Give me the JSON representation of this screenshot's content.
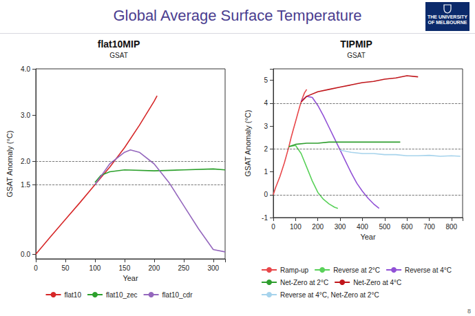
{
  "slide": {
    "title": "Global Average Surface Temperature",
    "logo": "THE UNIVERSITY OF MELBOURNE",
    "page": "8"
  },
  "chart_data": [
    {
      "type": "line",
      "title": "flat10MIP",
      "subtitle": "GSAT",
      "x_label": "Year",
      "y_label": "GSAT Anomaly (°C)",
      "xlim": [
        0,
        320
      ],
      "xticks": [
        0,
        50,
        100,
        150,
        200,
        250,
        300
      ],
      "ylim": [
        -0.1,
        4.0
      ],
      "yticks": [
        {
          "value": 0,
          "label": "0.0"
        },
        1.5,
        {
          "value": 2,
          "label": "2.0"
        },
        {
          "value": 3,
          "label": "3.0"
        },
        {
          "value": 4,
          "label": "4.0"
        }
      ],
      "hlines": [
        1.5,
        2.0
      ],
      "grid": false,
      "legend": "bottom",
      "series": [
        {
          "name": "flat10",
          "color": "#d62728",
          "x": [
            0,
            25,
            50,
            75,
            100,
            125,
            150,
            175,
            200,
            205
          ],
          "values": [
            0,
            0.38,
            0.75,
            1.12,
            1.5,
            1.88,
            2.3,
            2.78,
            3.3,
            3.42
          ]
        },
        {
          "name": "flat10_zec",
          "color": "#2ca02c",
          "x": [
            100,
            110,
            125,
            150,
            200,
            250,
            300,
            320
          ],
          "values": [
            1.55,
            1.7,
            1.78,
            1.82,
            1.8,
            1.82,
            1.84,
            1.82
          ]
        },
        {
          "name": "flat10_cdr",
          "color": "#9467bd",
          "x": [
            100,
            125,
            150,
            160,
            175,
            200,
            225,
            250,
            275,
            300,
            320
          ],
          "values": [
            1.5,
            1.95,
            2.2,
            2.25,
            2.2,
            1.95,
            1.55,
            1.05,
            0.55,
            0.1,
            0.05
          ]
        }
      ]
    },
    {
      "type": "line",
      "title": "TIPMIP",
      "subtitle": "GSAT",
      "x_label": "Year",
      "y_label": "GSAT Anomaly (°C)",
      "xlim": [
        0,
        850
      ],
      "xticks": [
        0,
        100,
        200,
        300,
        400,
        500,
        600,
        700,
        800
      ],
      "ylim": [
        -1,
        5.5
      ],
      "yticks": [
        -1,
        0,
        1,
        2,
        3,
        4,
        5
      ],
      "hlines": [
        0,
        2,
        4
      ],
      "grid": false,
      "legend": "bottom",
      "series": [
        {
          "name": "Ramp-up",
          "color": "#e8474a",
          "x": [
            0,
            10,
            20,
            30,
            40,
            50,
            60,
            70,
            80,
            90,
            100,
            110,
            120,
            130,
            140,
            150
          ],
          "values": [
            0,
            0.3,
            0.55,
            0.8,
            1.1,
            1.4,
            1.75,
            2.1,
            2.5,
            2.85,
            3.2,
            3.55,
            3.9,
            4.2,
            4.45,
            4.6
          ]
        },
        {
          "name": "Reverse at 2°C",
          "color": "#59d159",
          "x": [
            70,
            100,
            125,
            150,
            175,
            200,
            225,
            250,
            275,
            290
          ],
          "values": [
            2.1,
            2.15,
            1.8,
            1.2,
            0.6,
            0.1,
            -0.2,
            -0.4,
            -0.55,
            -0.6
          ]
        },
        {
          "name": "Reverse at 4°C",
          "color": "#9151d6",
          "x": [
            125,
            150,
            175,
            200,
            225,
            250,
            275,
            300,
            325,
            350,
            375,
            400,
            425,
            450,
            475
          ],
          "values": [
            4.1,
            4.3,
            4.25,
            3.9,
            3.45,
            2.95,
            2.45,
            1.95,
            1.45,
            0.95,
            0.5,
            0.15,
            -0.15,
            -0.4,
            -0.6
          ]
        },
        {
          "name": "Net-Zero at 2°C",
          "color": "#2e9e2e",
          "x": [
            70,
            100,
            150,
            200,
            250,
            300,
            350,
            400,
            450,
            500,
            570
          ],
          "values": [
            2.1,
            2.2,
            2.25,
            2.25,
            2.3,
            2.3,
            2.3,
            2.3,
            2.3,
            2.3,
            2.3
          ]
        },
        {
          "name": "Net-Zero at 4°C",
          "color": "#c0161b",
          "x": [
            125,
            150,
            200,
            250,
            300,
            350,
            400,
            450,
            500,
            550,
            600,
            650
          ],
          "values": [
            4.05,
            4.3,
            4.5,
            4.6,
            4.7,
            4.8,
            4.9,
            4.95,
            5.05,
            5.1,
            5.2,
            5.15
          ]
        },
        {
          "name": "Reverse at 4°C, Net-Zero at 2°C",
          "color": "#a6d3ec",
          "x": [
            300,
            350,
            400,
            450,
            500,
            550,
            600,
            650,
            700,
            750,
            800,
            840
          ],
          "values": [
            1.95,
            1.85,
            1.8,
            1.8,
            1.75,
            1.75,
            1.7,
            1.7,
            1.72,
            1.68,
            1.7,
            1.68
          ]
        }
      ]
    }
  ]
}
